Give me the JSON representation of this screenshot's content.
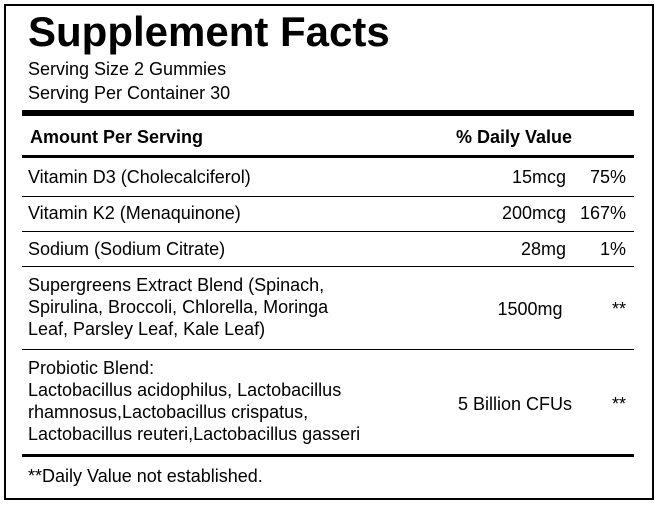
{
  "title": "Supplement Facts",
  "serving_size": "Serving Size 2 Gummies",
  "servings_per_container": "Serving Per Container 30",
  "header": {
    "amount_per_serving": "Amount Per Serving",
    "daily_value": "% Daily Value"
  },
  "rows": [
    {
      "name": "Vitamin D3 (Cholecalciferol)",
      "amount": "15mcg",
      "dv": "75%"
    },
    {
      "name": "Vitamin K2 (Menaquinone)",
      "amount": "200mcg",
      "dv": "167%"
    },
    {
      "name": "Sodium (Sodium Citrate)",
      "amount": "28mg",
      "dv": "1%"
    },
    {
      "name_lines": [
        "Supergreens Extract Blend (Spinach,",
        "Spirulina, Broccoli, Chlorella, Moringa",
        "Leaf, Parsley Leaf, Kale Leaf)"
      ],
      "amount": "1500mg",
      "dv": "**"
    },
    {
      "name_lines": [
        "Probiotic Blend:",
        "Lactobacillus acidophilus, Lactobacillus",
        "rhamnosus,Lactobacillus crispatus,",
        "Lactobacillus reuteri,Lactobacillus gasseri"
      ],
      "amount": "5 Billion CFUs",
      "dv": "**"
    }
  ],
  "footnote": "**Daily Value not established."
}
